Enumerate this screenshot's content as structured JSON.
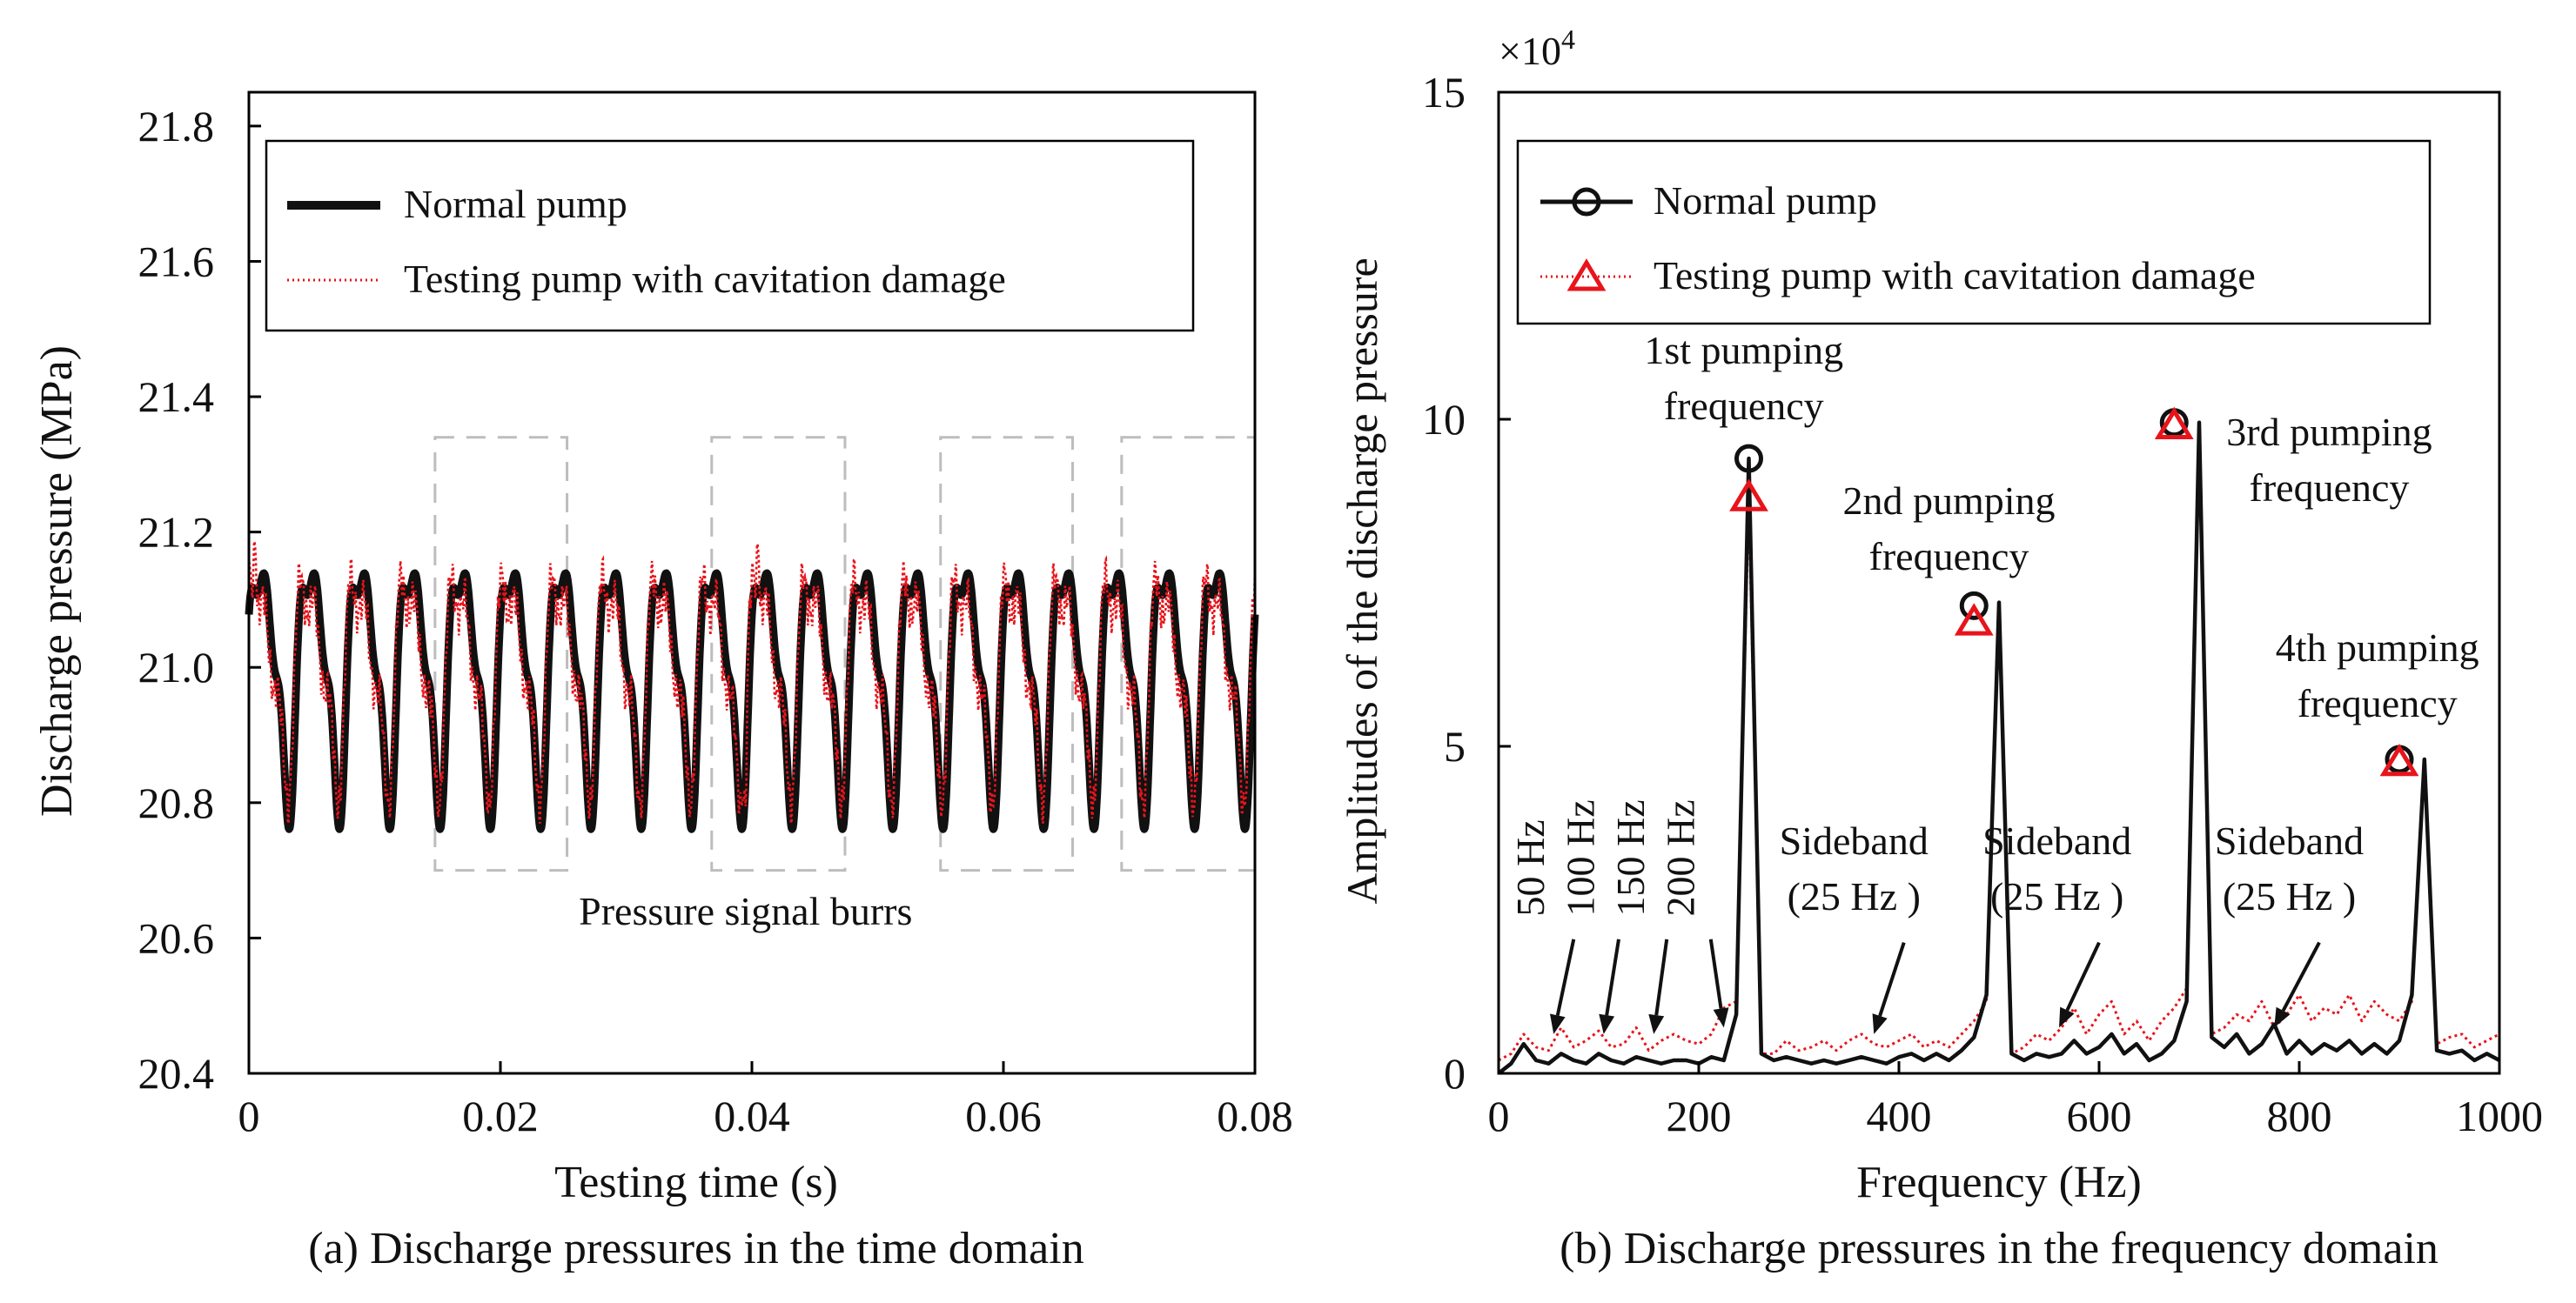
{
  "colors": {
    "normal": "#111111",
    "cavitation": "#e8141b",
    "frame": "#000000",
    "dashbox": "#bdbdbd"
  },
  "chart_data": [
    {
      "type": "line",
      "title": "(a) Discharge pressures in the time domain",
      "xlabel": "Testing time (s)",
      "ylabel": "Discharge pressure (MPa)",
      "xlim": [
        0,
        0.08
      ],
      "ylim": [
        20.4,
        21.85
      ],
      "xticks": [
        0,
        0.02,
        0.04,
        0.06,
        0.08
      ],
      "xtick_labels": [
        "0",
        "0.02",
        "0.04",
        "0.06",
        "0.08"
      ],
      "yticks": [
        20.4,
        20.6,
        20.8,
        21.0,
        21.2,
        21.4,
        21.6,
        21.8
      ],
      "ytick_labels": [
        "20.4",
        "20.6",
        "20.8",
        "21.0",
        "21.2",
        "21.4",
        "21.6",
        "21.8"
      ],
      "legend": {
        "position": "top",
        "entries": [
          "Normal pump",
          "Testing pump with cavitation damage"
        ]
      },
      "signal": {
        "mean": 21.0,
        "fundamental_hz": 250,
        "cycles_visible": 20,
        "max": 21.19,
        "min": 20.77
      },
      "series": [
        {
          "name": "Normal pump",
          "style": "solid thick",
          "components": [
            {
              "freq_hz": 250,
              "amp": 0.16
            },
            {
              "freq_hz": 500,
              "amp": 0.05
            },
            {
              "freq_hz": 750,
              "amp": 0.04
            }
          ]
        },
        {
          "name": "Testing pump with cavitation damage",
          "style": "dotted thin",
          "components": [
            {
              "freq_hz": 250,
              "amp": 0.13
            },
            {
              "freq_hz": 500,
              "amp": 0.05
            },
            {
              "freq_hz": 750,
              "amp": 0.05
            }
          ],
          "spikes": [
            {
              "x": 0.0005,
              "y": 21.24
            },
            {
              "x": 0.0405,
              "y": 21.23
            },
            {
              "x": 0.0395,
              "y": 20.72
            }
          ]
        }
      ],
      "regions": [
        {
          "x": [
            0.0148,
            0.0253
          ],
          "y": [
            20.7,
            21.34
          ]
        },
        {
          "x": [
            0.0368,
            0.0474
          ],
          "y": [
            20.7,
            21.34
          ]
        },
        {
          "x": [
            0.055,
            0.0655
          ],
          "y": [
            20.7,
            21.34
          ]
        },
        {
          "x": [
            0.0694,
            0.08
          ],
          "y": [
            20.7,
            21.34
          ]
        }
      ],
      "annotations": [
        {
          "text": "Pressure signal burrs",
          "x": 0.0395,
          "y": 20.62
        }
      ]
    },
    {
      "type": "line",
      "title": "(b) Discharge pressures in the frequency domain",
      "xlabel": "Frequency (Hz)",
      "ylabel": "Amplitudes of the discharge pressure",
      "y_multiplier": "×10",
      "y_multiplier_exponent": "4",
      "xlim": [
        0,
        1000
      ],
      "ylim": [
        0,
        15
      ],
      "xticks": [
        0,
        200,
        400,
        600,
        800,
        1000
      ],
      "xtick_labels": [
        "0",
        "200",
        "400",
        "600",
        "800",
        "1000"
      ],
      "yticks": [
        0,
        5,
        10,
        15
      ],
      "ytick_labels": [
        "0",
        "5",
        "10",
        "15"
      ],
      "legend": {
        "position": "top-left",
        "entries": [
          "Normal pump",
          "Testing pump with cavitation damage"
        ]
      },
      "series": [
        {
          "name": "Normal pump",
          "marker": "circle",
          "step_hz": 12.5,
          "values": [
            0,
            0.15,
            0.45,
            0.2,
            0.15,
            0.3,
            0.2,
            0.15,
            0.3,
            0.2,
            0.15,
            0.25,
            0.2,
            0.15,
            0.2,
            0.2,
            0.15,
            0.25,
            0.2,
            0.9,
            9.4,
            0.3,
            0.2,
            0.25,
            0.2,
            0.15,
            0.2,
            0.15,
            0.2,
            0.25,
            0.2,
            0.15,
            0.25,
            0.3,
            0.2,
            0.3,
            0.2,
            0.35,
            0.55,
            1.2,
            7.2,
            0.3,
            0.2,
            0.3,
            0.25,
            0.3,
            0.5,
            0.3,
            0.4,
            0.6,
            0.3,
            0.45,
            0.2,
            0.3,
            0.5,
            1.1,
            9.95,
            0.55,
            0.4,
            0.6,
            0.3,
            0.45,
            0.75,
            0.3,
            0.5,
            0.3,
            0.45,
            0.35,
            0.5,
            0.3,
            0.45,
            0.3,
            0.5,
            1.2,
            4.8,
            0.35,
            0.3,
            0.35,
            0.2,
            0.3,
            0.2
          ],
          "markers": [
            {
              "x": 250,
              "y": 9.4
            },
            {
              "x": 475,
              "y": 7.15
            },
            {
              "x": 675,
              "y": 9.95
            },
            {
              "x": 900,
              "y": 4.8
            }
          ]
        },
        {
          "name": "Testing pump with cavitation damage",
          "marker": "triangle",
          "step_hz": 12.5,
          "values": [
            0.2,
            0.3,
            0.6,
            0.4,
            0.35,
            0.7,
            0.4,
            0.5,
            0.65,
            0.4,
            0.45,
            0.7,
            0.35,
            0.5,
            0.6,
            0.5,
            0.45,
            0.6,
            1.0,
            1.1,
            8.8,
            0.3,
            0.3,
            0.5,
            0.35,
            0.4,
            0.5,
            0.35,
            0.5,
            0.6,
            0.45,
            0.4,
            0.5,
            0.6,
            0.4,
            0.5,
            0.4,
            0.6,
            0.8,
            1.1,
            7.0,
            0.3,
            0.4,
            0.6,
            0.5,
            0.7,
            1.0,
            0.6,
            0.9,
            1.1,
            0.6,
            0.8,
            0.5,
            0.8,
            1.0,
            1.3,
            9.9,
            0.6,
            0.7,
            0.9,
            0.8,
            1.1,
            0.7,
            0.9,
            1.2,
            0.8,
            1.0,
            0.9,
            1.2,
            0.8,
            1.1,
            0.9,
            0.8,
            1.1,
            4.75,
            0.45,
            0.55,
            0.6,
            0.4,
            0.5,
            0.6
          ],
          "markers": [
            {
              "x": 250,
              "y": 8.8
            },
            {
              "x": 475,
              "y": 6.9
            },
            {
              "x": 675,
              "y": 9.9
            },
            {
              "x": 900,
              "y": 4.75
            }
          ]
        }
      ],
      "annotations": [
        {
          "text": "1st pumping",
          "x": 245,
          "y": 10.85
        },
        {
          "text": "frequency",
          "x": 245,
          "y": 10.0
        },
        {
          "text": "2nd pumping",
          "x": 450,
          "y": 8.55
        },
        {
          "text": "frequency",
          "x": 450,
          "y": 7.7
        },
        {
          "text": "3rd pumping",
          "x": 830,
          "y": 9.6
        },
        {
          "text": "frequency",
          "x": 830,
          "y": 8.75
        },
        {
          "text": "4th pumping",
          "x": 878,
          "y": 6.3
        },
        {
          "text": "frequency",
          "x": 878,
          "y": 5.45
        },
        {
          "text": "50 Hz",
          "x": 45,
          "y": 2.4,
          "rotate": -90
        },
        {
          "text": "100 Hz",
          "x": 95,
          "y": 2.4,
          "rotate": -90
        },
        {
          "text": "150 Hz",
          "x": 145,
          "y": 2.4,
          "rotate": -90
        },
        {
          "text": "200 Hz",
          "x": 195,
          "y": 2.4,
          "rotate": -90
        },
        {
          "text": "Sideband",
          "x": 355,
          "y": 3.35
        },
        {
          "text": "(25 Hz )",
          "x": 355,
          "y": 2.5
        },
        {
          "text": "Sideband",
          "x": 558,
          "y": 3.35
        },
        {
          "text": "(25 Hz )",
          "x": 558,
          "y": 2.5
        },
        {
          "text": "Sideband",
          "x": 790,
          "y": 3.35
        },
        {
          "text": "(25 Hz )",
          "x": 790,
          "y": 2.5
        }
      ],
      "arrows": [
        {
          "from": [
            75,
            2.05
          ],
          "to": [
            55,
            0.6
          ]
        },
        {
          "from": [
            120,
            2.05
          ],
          "to": [
            105,
            0.6
          ]
        },
        {
          "from": [
            168,
            2.05
          ],
          "to": [
            155,
            0.6
          ]
        },
        {
          "from": [
            212,
            2.05
          ],
          "to": [
            225,
            0.7
          ]
        },
        {
          "from": [
            405,
            2.0
          ],
          "to": [
            375,
            0.6
          ]
        },
        {
          "from": [
            600,
            2.0
          ],
          "to": [
            560,
            0.7
          ]
        },
        {
          "from": [
            820,
            2.0
          ],
          "to": [
            775,
            0.7
          ]
        }
      ]
    }
  ]
}
